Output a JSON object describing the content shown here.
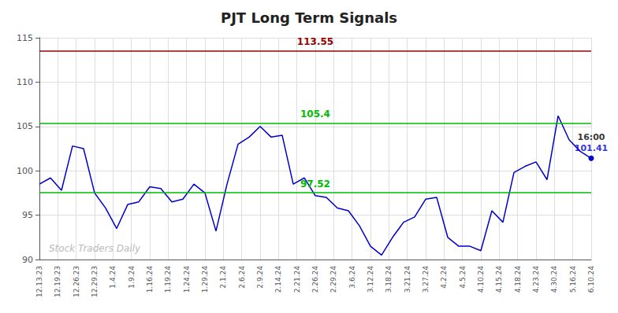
{
  "chart_data": {
    "type": "line",
    "title": "PJT Long Term Signals",
    "x": [
      0,
      0.02,
      0.04,
      0.06,
      0.08,
      0.1,
      0.12,
      0.14,
      0.16,
      0.18,
      0.2,
      0.22,
      0.24,
      0.26,
      0.28,
      0.3,
      0.32,
      0.34,
      0.36,
      0.38,
      0.4,
      0.42,
      0.44,
      0.46,
      0.48,
      0.5,
      0.52,
      0.54,
      0.56,
      0.58,
      0.6,
      0.62,
      0.64,
      0.66,
      0.68,
      0.7,
      0.72,
      0.74,
      0.76,
      0.78,
      0.8,
      0.82,
      0.84,
      0.86,
      0.88,
      0.9,
      0.92,
      0.94,
      0.96,
      0.98,
      1
    ],
    "series": [
      {
        "color": "#0000cc",
        "values": [
          98.5,
          99.2,
          97.8,
          102.8,
          102.5,
          97.5,
          95.8,
          93.5,
          96.2,
          96.5,
          98.2,
          98.0,
          96.5,
          96.8,
          98.5,
          97.5,
          93.2,
          98.5,
          103.0,
          103.8,
          105.0,
          103.8,
          104.0,
          98.5,
          99.2,
          97.2,
          97.0,
          95.8,
          95.5,
          93.8,
          91.5,
          90.5,
          92.5,
          94.2,
          94.8,
          96.8,
          97.0,
          92.5,
          91.5,
          91.5,
          91.0,
          95.5,
          94.2,
          99.8,
          100.5,
          101.0,
          99.0,
          106.2,
          103.5,
          102.2,
          101.41
        ]
      }
    ],
    "reference_lines": [
      {
        "value": 113.55,
        "color": "#990000"
      },
      {
        "value": 105.4,
        "color": "#00bb00"
      },
      {
        "value": 97.52,
        "color": "#00bb00"
      }
    ],
    "annotations": [
      {
        "text": "16:00",
        "x": 1,
        "y": 101.41
      },
      {
        "text": "101.41",
        "x": 1,
        "y": 101.41
      },
      {
        "text": "Stock Traders Daily"
      }
    ],
    "xlim": [
      0,
      1
    ],
    "xticks": [
      {
        "value": 0.0,
        "label": "12.13.23"
      },
      {
        "value": 0.03333333333333333,
        "label": "12.19.23"
      },
      {
        "value": 0.06666666666666667,
        "label": "12.26.23"
      },
      {
        "value": 0.1,
        "label": "12.29.23"
      },
      {
        "value": 0.13333333333333333,
        "label": "1.4.24"
      },
      {
        "value": 0.16666666666666666,
        "label": "1.9.24"
      },
      {
        "value": 0.2,
        "label": "1.16.24"
      },
      {
        "value": 0.23333333333333334,
        "label": "1.19.24"
      },
      {
        "value": 0.26666666666666666,
        "label": "1.24.24"
      },
      {
        "value": 0.3,
        "label": "1.29.24"
      },
      {
        "value": 0.3333333333333333,
        "label": "2.1.24"
      },
      {
        "value": 0.36666666666666664,
        "label": "2.6.24"
      },
      {
        "value": 0.4,
        "label": "2.9.24"
      },
      {
        "value": 0.43333333333333335,
        "label": "2.14.24"
      },
      {
        "value": 0.4666666666666667,
        "label": "2.21.24"
      },
      {
        "value": 0.5,
        "label": "2.26.24"
      },
      {
        "value": 0.5333333333333333,
        "label": "2.29.24"
      },
      {
        "value": 0.5666666666666667,
        "label": "3.6.24"
      },
      {
        "value": 0.6,
        "label": "3.12.24"
      },
      {
        "value": 0.6333333333333333,
        "label": "3.18.24"
      },
      {
        "value": 0.6666666666666666,
        "label": "3.21.24"
      },
      {
        "value": 0.7,
        "label": "3.27.24"
      },
      {
        "value": 0.7333333333333333,
        "label": "4.2.24"
      },
      {
        "value": 0.7666666666666667,
        "label": "4.5.24"
      },
      {
        "value": 0.8,
        "label": "4.10.24"
      },
      {
        "value": 0.8333333333333334,
        "label": "4.15.24"
      },
      {
        "value": 0.8666666666666667,
        "label": "4.18.24"
      },
      {
        "value": 0.9,
        "label": "4.23.24"
      },
      {
        "value": 0.9333333333333333,
        "label": "4.30.24"
      },
      {
        "value": 0.9666666666666667,
        "label": "5.16.24"
      },
      {
        "value": 1.0,
        "label": "6.10.24"
      }
    ],
    "ylim": [
      90,
      115
    ],
    "yticks": [
      90,
      95,
      100,
      105,
      110,
      115
    ],
    "grid": true
  }
}
